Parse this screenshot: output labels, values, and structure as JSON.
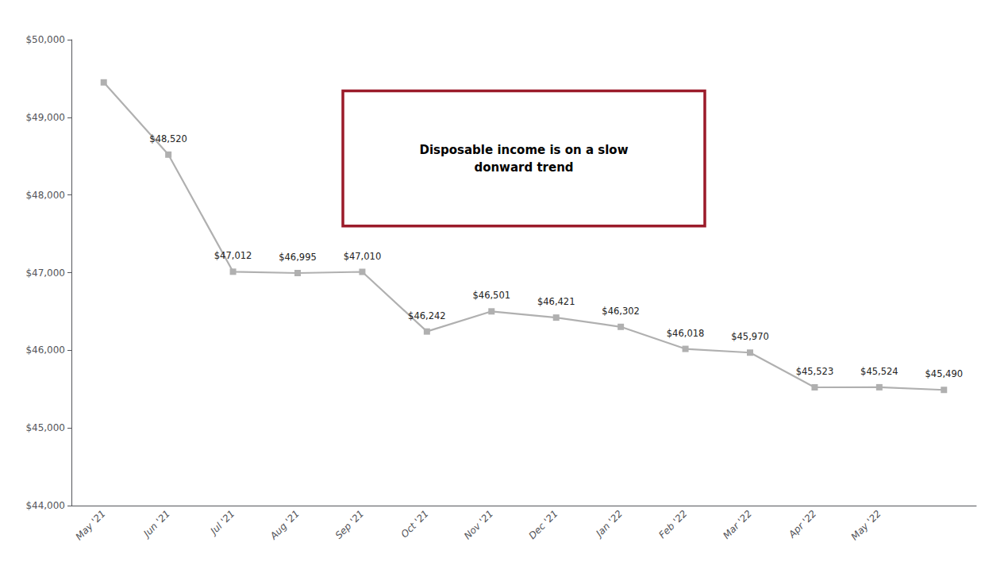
{
  "chart_data": {
    "type": "line",
    "categories": [
      "May '21",
      "Jun '21",
      "Jul '21",
      "Aug '21",
      "Sep '21",
      "Oct '21",
      "Nov '21",
      "Dec '21",
      "Jan '22",
      "Feb '22",
      "Mar '22",
      "Apr '22",
      "May '22",
      null
    ],
    "values": [
      49450,
      48520,
      47012,
      46995,
      47010,
      46242,
      46501,
      46421,
      46302,
      46018,
      45970,
      45523,
      45524,
      45490
    ],
    "value_labels": [
      null,
      "$48,520",
      "$47,012",
      "$46,995",
      "$47,010",
      "$46,242",
      "$46,501",
      "$46,421",
      "$46,302",
      "$46,018",
      "$45,970",
      "$45,523",
      "$45,524",
      "$45,490"
    ],
    "data_labels": true,
    "color": "#b0b0b0",
    "marker": "square",
    "ylim": [
      44000,
      50000
    ],
    "yticks": [
      {
        "value": 44000,
        "label": "$44,000"
      },
      {
        "value": 45000,
        "label": "$45,000"
      },
      {
        "value": 46000,
        "label": "$46,000"
      },
      {
        "value": 47000,
        "label": "$47,000"
      },
      {
        "value": 48000,
        "label": "$48,000"
      },
      {
        "value": 49000,
        "label": "$49,000"
      },
      {
        "value": 50000,
        "label": "$50,000"
      }
    ],
    "grid": false,
    "annotations": [
      {
        "text": "Disposable income is on a slow\ndonward trend",
        "color": "#9b1b2a"
      }
    ]
  }
}
